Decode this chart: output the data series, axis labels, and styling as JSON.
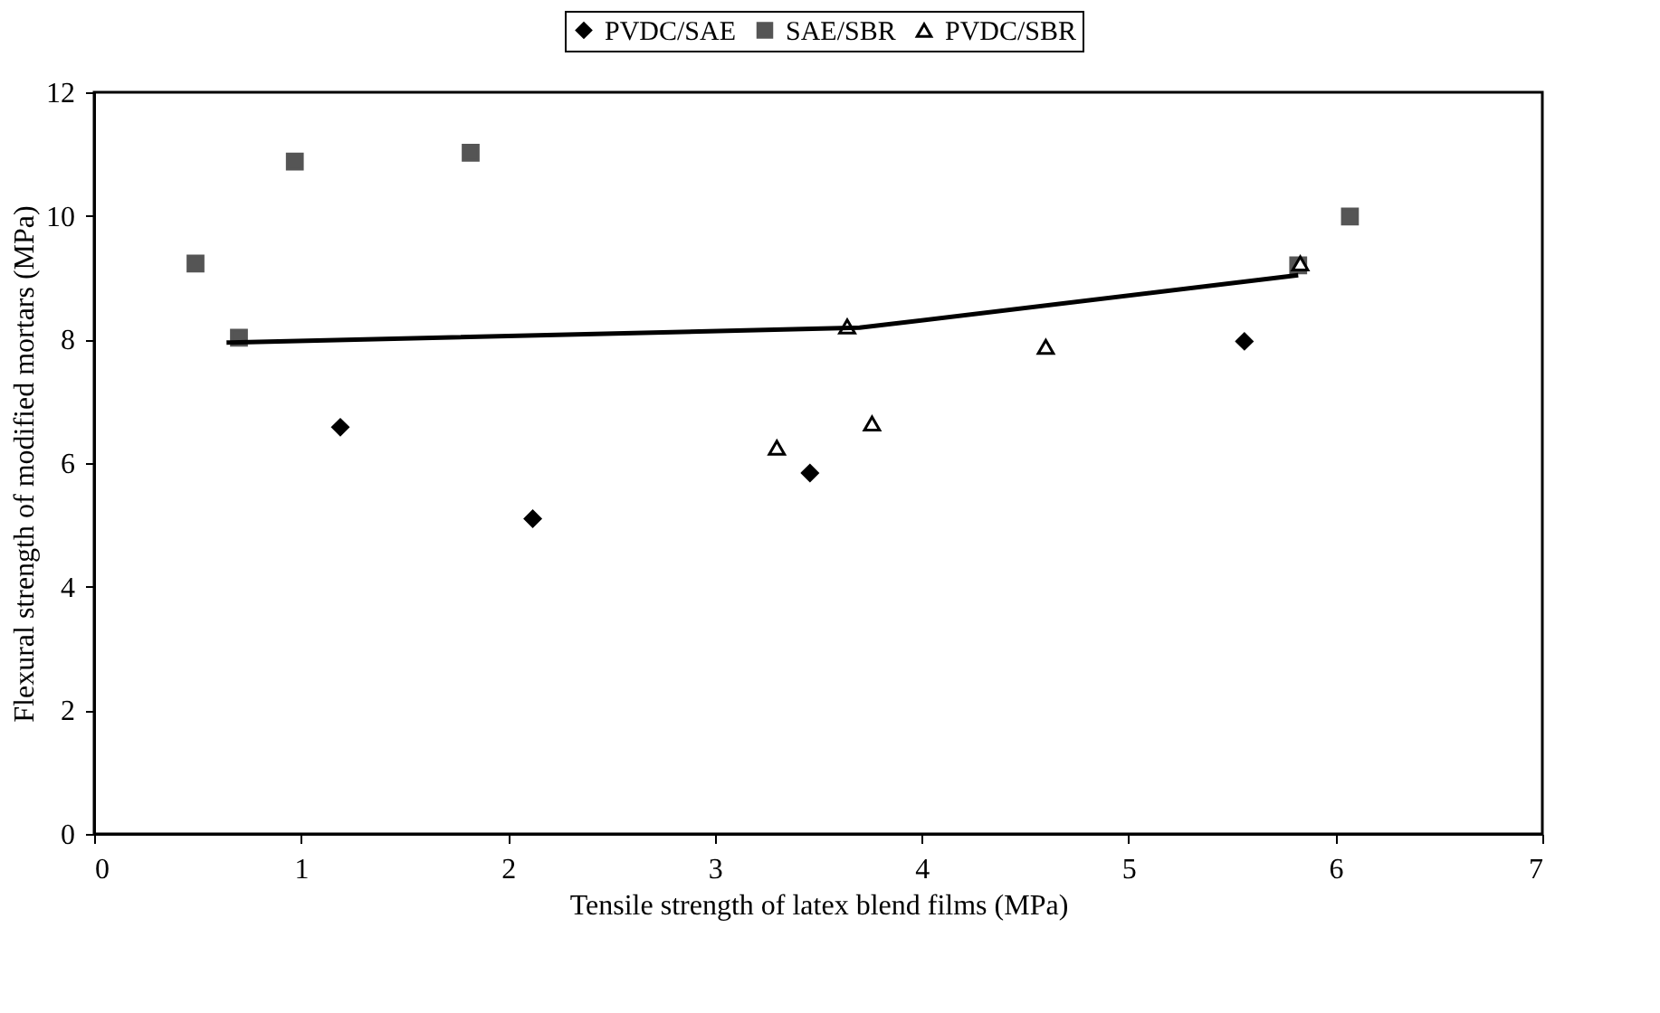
{
  "chart_data": {
    "type": "scatter",
    "xlabel": "Tensile strength of latex blend films (MPa)",
    "ylabel": "Flexural strength of modified mortars (MPa)",
    "xlim": [
      0,
      7
    ],
    "xticks": [
      0,
      1,
      2,
      3,
      4,
      5,
      6,
      7
    ],
    "ylim": [
      0,
      12
    ],
    "yticks": [
      0,
      2,
      4,
      6,
      8,
      10,
      12
    ],
    "grid": false,
    "legend": "top",
    "series": [
      {
        "name": "PVDC/SAE",
        "color": "#000000",
        "marker": "diamond",
        "x": [
          1.19,
          2.12,
          3.46,
          5.56
        ],
        "values": [
          6.58,
          5.1,
          5.84,
          7.97
        ]
      },
      {
        "name": "SAE/SBR",
        "color": "#555555",
        "marker": "square",
        "x": [
          0.49,
          0.7,
          0.97,
          1.82,
          5.82,
          6.07
        ],
        "values": [
          9.23,
          8.03,
          10.88,
          11.02,
          9.2,
          9.99
        ]
      },
      {
        "name": "PVDC/SBR",
        "color": "#000000",
        "marker": "triangle",
        "x": [
          3.3,
          3.64,
          3.76,
          4.6,
          5.83
        ],
        "values": [
          6.25,
          8.21,
          6.64,
          7.88,
          9.23
        ]
      },
      {
        "type": "line",
        "color": "#000000",
        "marker": "none",
        "line_style": "solid",
        "x": [
          0.64,
          3.7,
          5.82
        ],
        "values": [
          7.95,
          8.19,
          9.04
        ]
      }
    ]
  }
}
